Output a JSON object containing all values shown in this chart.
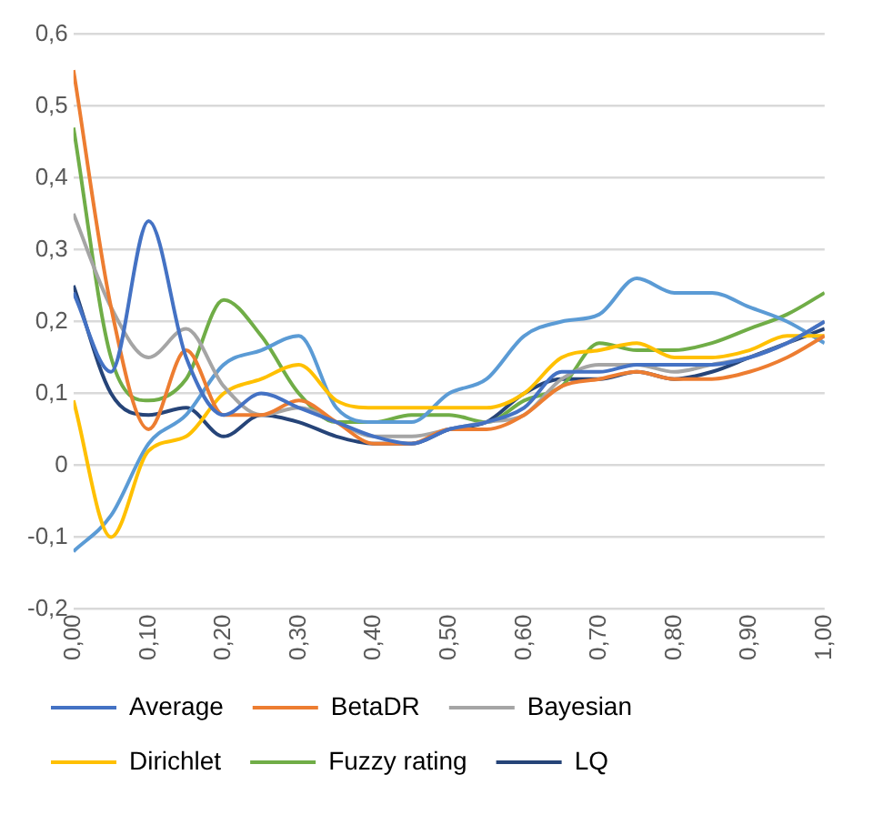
{
  "chart_data": {
    "type": "line",
    "x": [
      0,
      0.05,
      0.1,
      0.15,
      0.2,
      0.25,
      0.3,
      0.35,
      0.4,
      0.45,
      0.5,
      0.55,
      0.6,
      0.65,
      0.7,
      0.75,
      0.8,
      0.85,
      0.9,
      0.95,
      1.0
    ],
    "xlim": [
      0,
      1
    ],
    "xticks": [
      {
        "value": 0,
        "label": "0,00"
      },
      {
        "value": 0.1,
        "label": "0,10"
      },
      {
        "value": 0.2,
        "label": "0,20"
      },
      {
        "value": 0.3,
        "label": "0,30"
      },
      {
        "value": 0.4,
        "label": "0,40"
      },
      {
        "value": 0.5,
        "label": "0,50"
      },
      {
        "value": 0.6,
        "label": "0,60"
      },
      {
        "value": 0.7,
        "label": "0,70"
      },
      {
        "value": 0.8,
        "label": "0,80"
      },
      {
        "value": 0.9,
        "label": "0,90"
      },
      {
        "value": 1,
        "label": "1,00"
      }
    ],
    "ylim": [
      -0.2,
      0.6
    ],
    "yticks": [
      {
        "value": -0.2,
        "label": "-0,2"
      },
      {
        "value": -0.1,
        "label": "-0,1"
      },
      0,
      {
        "value": 0.1,
        "label": "0,1"
      },
      {
        "value": 0.2,
        "label": "0,2"
      },
      {
        "value": 0.3,
        "label": "0,3"
      },
      {
        "value": 0.4,
        "label": "0,4"
      },
      {
        "value": 0.5,
        "label": "0,5"
      },
      {
        "value": 0.6,
        "label": "0,6"
      }
    ],
    "grid": "y",
    "legend": "bottom",
    "marker": "none",
    "line_style": "solid",
    "series": [
      {
        "name": "Average",
        "color": "#4472c4",
        "values": [
          0.24,
          0.13,
          0.34,
          0.15,
          0.07,
          0.1,
          0.08,
          0.06,
          0.04,
          0.03,
          0.05,
          0.06,
          0.08,
          0.13,
          0.13,
          0.14,
          0.14,
          0.14,
          0.15,
          0.17,
          0.2
        ]
      },
      {
        "name": "BetaDR",
        "color": "#ed7d31",
        "values": [
          0.55,
          0.22,
          0.05,
          0.16,
          0.07,
          0.07,
          0.09,
          0.06,
          0.03,
          0.03,
          0.05,
          0.05,
          0.07,
          0.11,
          0.12,
          0.13,
          0.12,
          0.12,
          0.13,
          0.15,
          0.18
        ]
      },
      {
        "name": "Bayesian",
        "color": "#a5a5a5",
        "values": [
          0.35,
          0.22,
          0.15,
          0.19,
          0.11,
          0.07,
          0.08,
          0.06,
          0.04,
          0.04,
          0.05,
          0.06,
          0.07,
          0.12,
          0.14,
          0.14,
          0.13,
          0.14,
          0.15,
          0.17,
          0.2
        ]
      },
      {
        "name": "Dirichlet",
        "color": "#ffc000",
        "values": [
          0.09,
          -0.1,
          0.02,
          0.04,
          0.1,
          0.12,
          0.14,
          0.09,
          0.08,
          0.08,
          0.08,
          0.08,
          0.1,
          0.15,
          0.16,
          0.17,
          0.15,
          0.15,
          0.16,
          0.18,
          0.18
        ]
      },
      {
        "color": "#5b9bd5",
        "values": [
          -0.12,
          -0.07,
          0.03,
          0.07,
          0.14,
          0.16,
          0.18,
          0.08,
          0.06,
          0.06,
          0.1,
          0.12,
          0.18,
          0.2,
          0.21,
          0.26,
          0.24,
          0.24,
          0.22,
          0.2,
          0.17
        ]
      },
      {
        "name": "Fuzzy rating",
        "color": "#70ad47",
        "values": [
          0.47,
          0.15,
          0.09,
          0.12,
          0.23,
          0.18,
          0.1,
          0.06,
          0.06,
          0.07,
          0.07,
          0.06,
          0.09,
          0.11,
          0.17,
          0.16,
          0.16,
          0.17,
          0.19,
          0.21,
          0.24
        ]
      },
      {
        "name": "LQ",
        "color": "#264478",
        "values": [
          0.25,
          0.1,
          0.07,
          0.08,
          0.04,
          0.07,
          0.06,
          0.04,
          0.03,
          0.03,
          0.05,
          0.06,
          0.1,
          0.12,
          0.12,
          0.13,
          0.12,
          0.13,
          0.15,
          0.17,
          0.19
        ]
      }
    ]
  }
}
